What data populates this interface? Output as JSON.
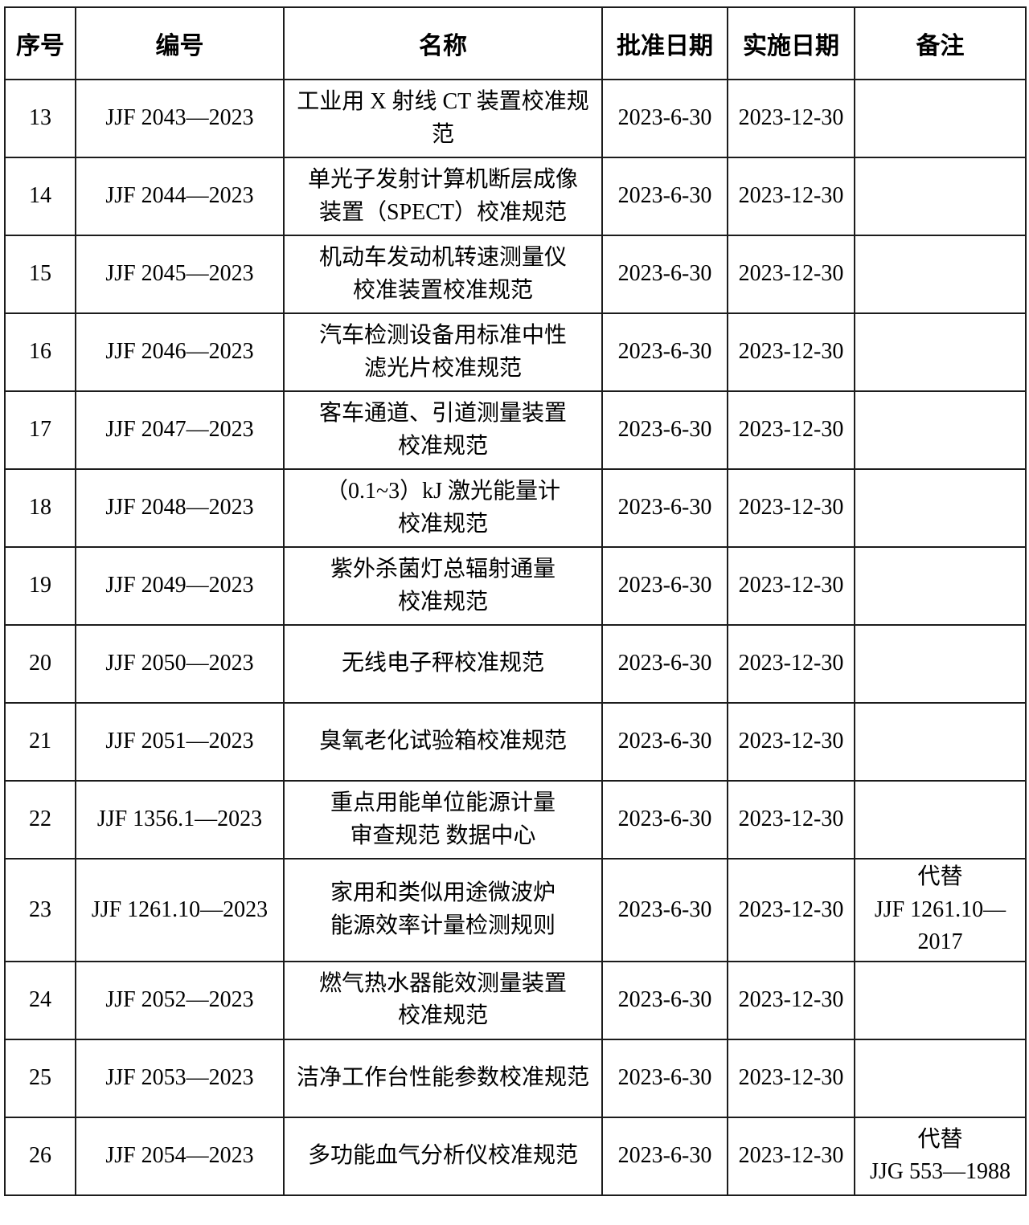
{
  "table": {
    "columns": [
      {
        "key": "no",
        "label": "序号"
      },
      {
        "key": "code",
        "label": "编号"
      },
      {
        "key": "name",
        "label": "名称"
      },
      {
        "key": "approval_date",
        "label": "批准日期"
      },
      {
        "key": "implementation_date",
        "label": "实施日期"
      },
      {
        "key": "remark",
        "label": "备注"
      }
    ],
    "rows": [
      {
        "no": "13",
        "code": "JJF 2043—2023",
        "name": "工业用 X 射线 CT 装置校准规范",
        "approval_date": "2023-6-30",
        "implementation_date": "2023-12-30",
        "remark": ""
      },
      {
        "no": "14",
        "code": "JJF 2044—2023",
        "name": "单光子发射计算机断层成像\n装置（SPECT）校准规范",
        "approval_date": "2023-6-30",
        "implementation_date": "2023-12-30",
        "remark": ""
      },
      {
        "no": "15",
        "code": "JJF 2045—2023",
        "name": "机动车发动机转速测量仪\n校准装置校准规范",
        "approval_date": "2023-6-30",
        "implementation_date": "2023-12-30",
        "remark": ""
      },
      {
        "no": "16",
        "code": "JJF 2046—2023",
        "name": "汽车检测设备用标准中性\n滤光片校准规范",
        "approval_date": "2023-6-30",
        "implementation_date": "2023-12-30",
        "remark": ""
      },
      {
        "no": "17",
        "code": "JJF 2047—2023",
        "name": "客车通道、引道测量装置\n校准规范",
        "approval_date": "2023-6-30",
        "implementation_date": "2023-12-30",
        "remark": ""
      },
      {
        "no": "18",
        "code": "JJF 2048—2023",
        "name": "（0.1~3）kJ 激光能量计\n校准规范",
        "approval_date": "2023-6-30",
        "implementation_date": "2023-12-30",
        "remark": ""
      },
      {
        "no": "19",
        "code": "JJF 2049—2023",
        "name": "紫外杀菌灯总辐射通量\n校准规范",
        "approval_date": "2023-6-30",
        "implementation_date": "2023-12-30",
        "remark": ""
      },
      {
        "no": "20",
        "code": "JJF 2050—2023",
        "name": "无线电子秤校准规范",
        "approval_date": "2023-6-30",
        "implementation_date": "2023-12-30",
        "remark": ""
      },
      {
        "no": "21",
        "code": "JJF 2051—2023",
        "name": "臭氧老化试验箱校准规范",
        "approval_date": "2023-6-30",
        "implementation_date": "2023-12-30",
        "remark": ""
      },
      {
        "no": "22",
        "code": "JJF 1356.1—2023",
        "name": "重点用能单位能源计量\n审查规范  数据中心",
        "approval_date": "2023-6-30",
        "implementation_date": "2023-12-30",
        "remark": ""
      },
      {
        "no": "23",
        "code": "JJF 1261.10—2023",
        "name": "家用和类似用途微波炉\n能源效率计量检测规则",
        "approval_date": "2023-6-30",
        "implementation_date": "2023-12-30",
        "remark": "代替\nJJF 1261.10—\n2017"
      },
      {
        "no": "24",
        "code": "JJF 2052—2023",
        "name": "燃气热水器能效测量装置\n校准规范",
        "approval_date": "2023-6-30",
        "implementation_date": "2023-12-30",
        "remark": ""
      },
      {
        "no": "25",
        "code": "JJF 2053—2023",
        "name": "洁净工作台性能参数校准规范",
        "approval_date": "2023-6-30",
        "implementation_date": "2023-12-30",
        "remark": ""
      },
      {
        "no": "26",
        "code": "JJF 2054—2023",
        "name": "多功能血气分析仪校准规范",
        "approval_date": "2023-6-30",
        "implementation_date": "2023-12-30",
        "remark": "代替\nJJG 553—1988"
      }
    ]
  }
}
